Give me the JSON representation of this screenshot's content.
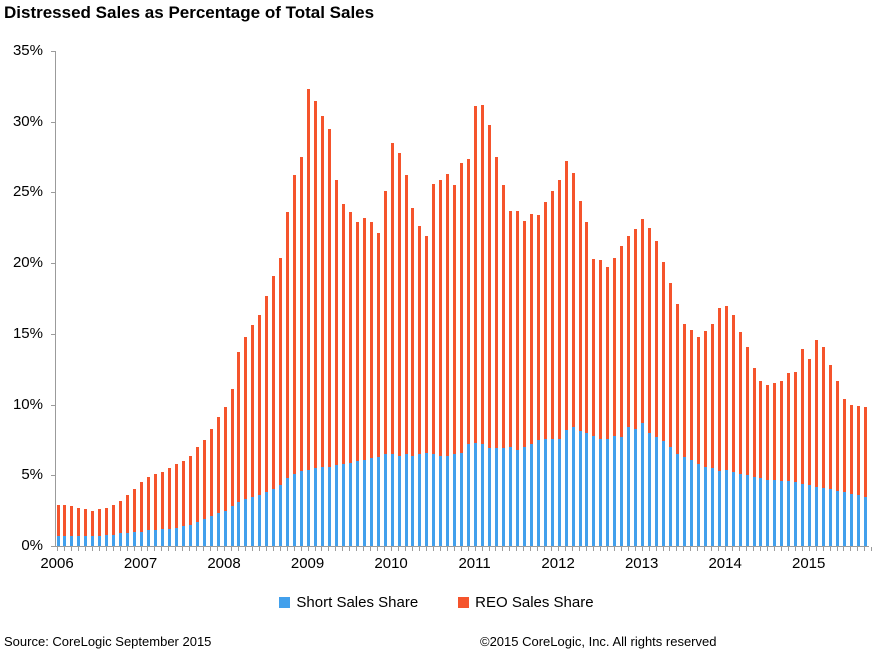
{
  "title": "Distressed Sales as Percentage of Total Sales",
  "chart_data": {
    "type": "bar",
    "subtype": "stacked-monthly",
    "title": "Distressed Sales as Percentage of Total Sales",
    "xlabel": "",
    "ylabel": "",
    "ylim": [
      0,
      35
    ],
    "y_tick_labels": [
      "0%",
      "5%",
      "10%",
      "15%",
      "20%",
      "25%",
      "30%",
      "35%"
    ],
    "x_tick_labels": [
      "2006",
      "2007",
      "2008",
      "2009",
      "2010",
      "2011",
      "2012",
      "2013",
      "2014",
      "2015"
    ],
    "x_start": "2006-01",
    "x_end": "2015-09",
    "grid": false,
    "legend_position": "bottom",
    "series": [
      {
        "name": "Short Sales Share",
        "color": "#42A0EC",
        "values": [
          0.7,
          0.7,
          0.7,
          0.7,
          0.7,
          0.7,
          0.7,
          0.8,
          0.8,
          0.9,
          0.9,
          1.0,
          1.0,
          1.1,
          1.1,
          1.2,
          1.2,
          1.3,
          1.4,
          1.5,
          1.7,
          1.9,
          2.1,
          2.3,
          2.5,
          2.8,
          3.1,
          3.3,
          3.5,
          3.6,
          3.8,
          4.0,
          4.3,
          4.8,
          5.1,
          5.3,
          5.4,
          5.5,
          5.6,
          5.6,
          5.7,
          5.8,
          5.9,
          6.0,
          6.1,
          6.2,
          6.3,
          6.5,
          6.5,
          6.4,
          6.5,
          6.4,
          6.5,
          6.6,
          6.5,
          6.4,
          6.4,
          6.5,
          6.6,
          7.2,
          7.3,
          7.2,
          6.9,
          6.9,
          6.9,
          7.0,
          6.8,
          7.0,
          7.2,
          7.5,
          7.6,
          7.6,
          7.6,
          8.2,
          8.4,
          8.1,
          8.0,
          7.8,
          7.6,
          7.6,
          7.8,
          7.7,
          8.4,
          8.3,
          8.7,
          8.0,
          7.7,
          7.4,
          7.0,
          6.5,
          6.3,
          6.1,
          5.8,
          5.6,
          5.5,
          5.3,
          5.4,
          5.2,
          5.1,
          5.0,
          4.9,
          4.8,
          4.7,
          4.7,
          4.6,
          4.6,
          4.5,
          4.4,
          4.3,
          4.2,
          4.1,
          4.0,
          3.9,
          3.8,
          3.7,
          3.6,
          3.5
        ]
      },
      {
        "name": "REO Sales Share",
        "color": "#F5542C",
        "values": [
          2.2,
          2.2,
          2.1,
          2.0,
          1.9,
          1.8,
          1.9,
          1.9,
          2.1,
          2.3,
          2.7,
          3.0,
          3.5,
          3.8,
          4.0,
          4.0,
          4.3,
          4.5,
          4.6,
          4.9,
          5.3,
          5.6,
          6.2,
          6.8,
          7.3,
          8.3,
          10.6,
          11.5,
          12.1,
          12.7,
          13.9,
          15.1,
          16.1,
          18.8,
          21.1,
          22.2,
          26.9,
          26.0,
          24.8,
          23.9,
          20.2,
          18.4,
          17.7,
          16.9,
          17.1,
          16.7,
          15.8,
          18.6,
          22.0,
          21.4,
          19.7,
          17.5,
          16.1,
          15.3,
          19.1,
          19.5,
          19.9,
          19.0,
          20.5,
          20.2,
          23.8,
          24.0,
          22.9,
          20.6,
          18.6,
          16.7,
          16.9,
          16.0,
          16.3,
          15.9,
          16.7,
          17.5,
          18.3,
          19.0,
          18.0,
          16.3,
          14.9,
          12.5,
          12.6,
          12.1,
          12.6,
          13.5,
          13.5,
          14.1,
          14.4,
          14.5,
          13.9,
          12.7,
          11.6,
          10.6,
          9.4,
          9.2,
          9.0,
          9.6,
          10.2,
          11.5,
          11.6,
          11.1,
          10.0,
          9.1,
          7.7,
          6.9,
          6.7,
          6.8,
          7.1,
          7.6,
          7.8,
          9.5,
          8.9,
          10.4,
          10.0,
          8.8,
          7.8,
          6.6,
          6.3,
          6.3,
          6.3
        ]
      }
    ]
  },
  "legend": {
    "short_label": "Short Sales Share",
    "reo_label": "REO Sales Share"
  },
  "footer": {
    "source": "Source: CoreLogic September 2015",
    "copyright": "©2015 CoreLogic, Inc. All rights reserved"
  },
  "colors": {
    "short_sales": "#42A0EC",
    "reo_sales": "#F5542C",
    "axis": "#9b9b9b",
    "text": "#000000"
  }
}
